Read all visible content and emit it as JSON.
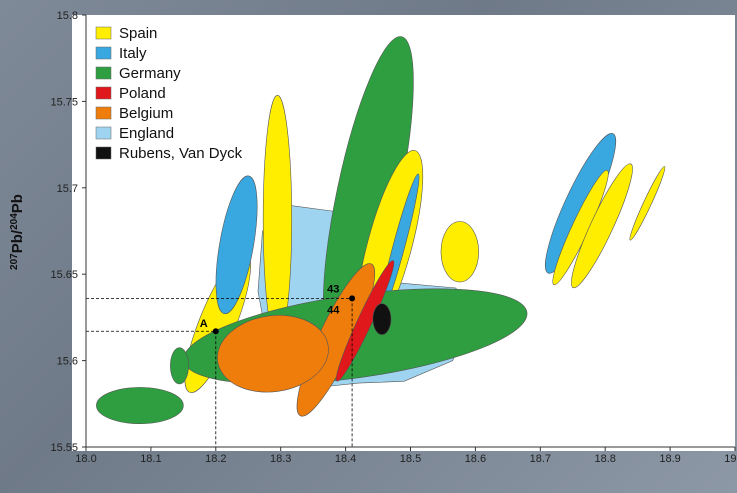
{
  "chart_data": {
    "type": "scatter",
    "ylabel": {
      "sup1": "207",
      "base1": "Pb/",
      "sup2": "204",
      "base2": "Pb"
    },
    "xlim": [
      18.0,
      19.0
    ],
    "ylim": [
      15.55,
      15.8
    ],
    "x_ticks": [
      "18.0",
      "18.1",
      "18.2",
      "18.3",
      "18.4",
      "18.5",
      "18.6",
      "18.7",
      "18.8",
      "18.9",
      "19.0"
    ],
    "y_ticks": [
      "15.55",
      "15.6",
      "15.65",
      "15.7",
      "15.75",
      "15.8"
    ],
    "legend_position": "top-left",
    "legend": [
      {
        "key": "spain",
        "label": "Spain",
        "color": "#ffee00"
      },
      {
        "key": "italy",
        "label": "Italy",
        "color": "#3aa8e0"
      },
      {
        "key": "germany",
        "label": "Germany",
        "color": "#2e9e40"
      },
      {
        "key": "poland",
        "label": "Poland",
        "color": "#e0181c"
      },
      {
        "key": "belgium",
        "label": "Belgium",
        "color": "#ef7d0c"
      },
      {
        "key": "england",
        "label": "England",
        "color": "#9fd4f0"
      },
      {
        "key": "rubens",
        "label": "Rubens, Van Dyck",
        "color": "#111111"
      }
    ],
    "fields": [
      {
        "group": "england",
        "shape": "polygon",
        "points": [
          [
            18.31,
            15.69
          ],
          [
            18.39,
            15.686
          ],
          [
            18.445,
            15.66
          ],
          [
            18.48,
            15.645
          ],
          [
            18.57,
            15.642
          ],
          [
            18.59,
            15.625
          ],
          [
            18.565,
            15.6
          ],
          [
            18.49,
            15.588
          ],
          [
            18.42,
            15.587
          ],
          [
            18.37,
            15.585
          ],
          [
            18.31,
            15.588
          ],
          [
            18.285,
            15.6
          ],
          [
            18.265,
            15.64
          ],
          [
            18.272,
            15.675
          ]
        ]
      },
      {
        "group": "germany",
        "cx": 18.435,
        "cy": 15.697,
        "rx": 0.048,
        "ry": 0.0925,
        "rot": 12
      },
      {
        "group": "spain",
        "cx": 18.295,
        "cy": 15.682,
        "rx": 0.022,
        "ry": 0.0715,
        "rot": 0
      },
      {
        "group": "spain",
        "cx": 18.468,
        "cy": 15.667,
        "rx": 0.034,
        "ry": 0.0565,
        "rot": 15
      },
      {
        "group": "italy",
        "cx": 18.482,
        "cy": 15.666,
        "rx": 0.009,
        "ry": 0.0435,
        "rot": 15
      },
      {
        "group": "spain",
        "cx": 18.203,
        "cy": 15.622,
        "rx": 0.028,
        "ry": 0.0435,
        "rot": 22
      },
      {
        "group": "italy",
        "cx": 18.232,
        "cy": 15.667,
        "rx": 0.026,
        "ry": 0.0405,
        "rot": 10
      },
      {
        "group": "spain",
        "cx": 18.576,
        "cy": 15.663,
        "rx": 0.029,
        "ry": 0.0175,
        "rot": 0
      },
      {
        "group": "italy",
        "cx": 18.762,
        "cy": 15.691,
        "rx": 0.023,
        "ry": 0.0445,
        "rot": 25
      },
      {
        "group": "spain",
        "cx": 18.762,
        "cy": 15.677,
        "rx": 0.013,
        "ry": 0.0365,
        "rot": 25
      },
      {
        "group": "spain",
        "cx": 18.795,
        "cy": 15.678,
        "rx": 0.017,
        "ry": 0.0395,
        "rot": 25
      },
      {
        "group": "spain",
        "cx": 18.865,
        "cy": 15.691,
        "rx": 0.006,
        "ry": 0.0235,
        "rot": 25
      },
      {
        "group": "germany",
        "cx": 18.415,
        "cy": 15.614,
        "rx": 0.267,
        "ry": 0.024,
        "rot": -8
      },
      {
        "group": "germany",
        "cx": 18.144,
        "cy": 15.597,
        "rx": 0.014,
        "ry": 0.0105,
        "rot": 0
      },
      {
        "group": "germany",
        "cx": 18.083,
        "cy": 15.574,
        "rx": 0.067,
        "ry": 0.0105,
        "rot": 0
      },
      {
        "group": "belgium",
        "cx": 18.385,
        "cy": 15.612,
        "rx": 0.027,
        "ry": 0.0485,
        "rot": 25
      },
      {
        "group": "belgium",
        "cx": 18.288,
        "cy": 15.604,
        "rx": 0.086,
        "ry": 0.022,
        "rot": -8
      },
      {
        "group": "poland",
        "cx": 18.43,
        "cy": 15.623,
        "rx": 0.011,
        "ry": 0.0385,
        "rot": 25
      },
      {
        "group": "rubens",
        "cx": 18.456,
        "cy": 15.624,
        "rx": 0.014,
        "ry": 0.009,
        "rot": 0
      }
    ],
    "annotations": [
      {
        "label": "A",
        "x": 18.2,
        "y": 15.617,
        "label_side": "left"
      },
      {
        "label": "43",
        "x": 18.41,
        "y": 15.636,
        "label_side": "above"
      },
      {
        "label": "44",
        "x": 18.41,
        "y": 15.636,
        "label_side": "below"
      }
    ]
  }
}
